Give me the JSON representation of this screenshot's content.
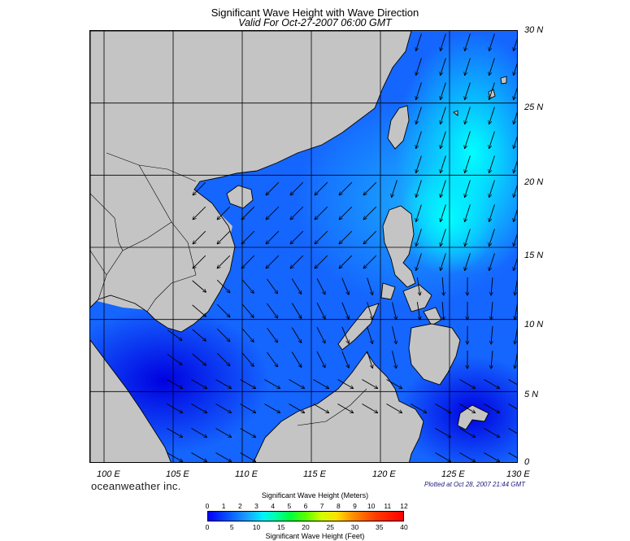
{
  "header": {
    "title": "Significant Wave Height with Wave Direction",
    "subtitle": "Valid For Oct-27-2007 06:00 GMT"
  },
  "map": {
    "region": "South China Sea",
    "lon_range": [
      99,
      130
    ],
    "lat_range": [
      0,
      30
    ],
    "lon_labels": [
      "100 E",
      "105 E",
      "110 E",
      "115 E",
      "120 E",
      "125 E",
      "130 E"
    ],
    "lat_labels": [
      "30 N",
      "25 N",
      "20 N",
      "15 N",
      "10 N",
      "5 N",
      "0"
    ],
    "land_color": "#c4c4c4",
    "grid": true
  },
  "footer": {
    "brand": "oceanweather inc.",
    "plotted": "Plotted at Oct 28, 2007 21:44 GMT"
  },
  "legend": {
    "meters_title": "Significant Wave Height (Meters)",
    "feet_title": "Significant Wave Height (Feet)",
    "meters_ticks": [
      "0",
      "1",
      "2",
      "3",
      "4",
      "5",
      "6",
      "7",
      "8",
      "9",
      "10",
      "11",
      "12"
    ],
    "feet_ticks": [
      "0",
      "5",
      "10",
      "15",
      "20",
      "25",
      "30",
      "35",
      "40"
    ],
    "colors": [
      "#0000ff",
      "#1aa0ff",
      "#00f0ff",
      "#00ff40",
      "#d0ff00",
      "#ffe000",
      "#ff9000",
      "#ff0000"
    ]
  }
}
